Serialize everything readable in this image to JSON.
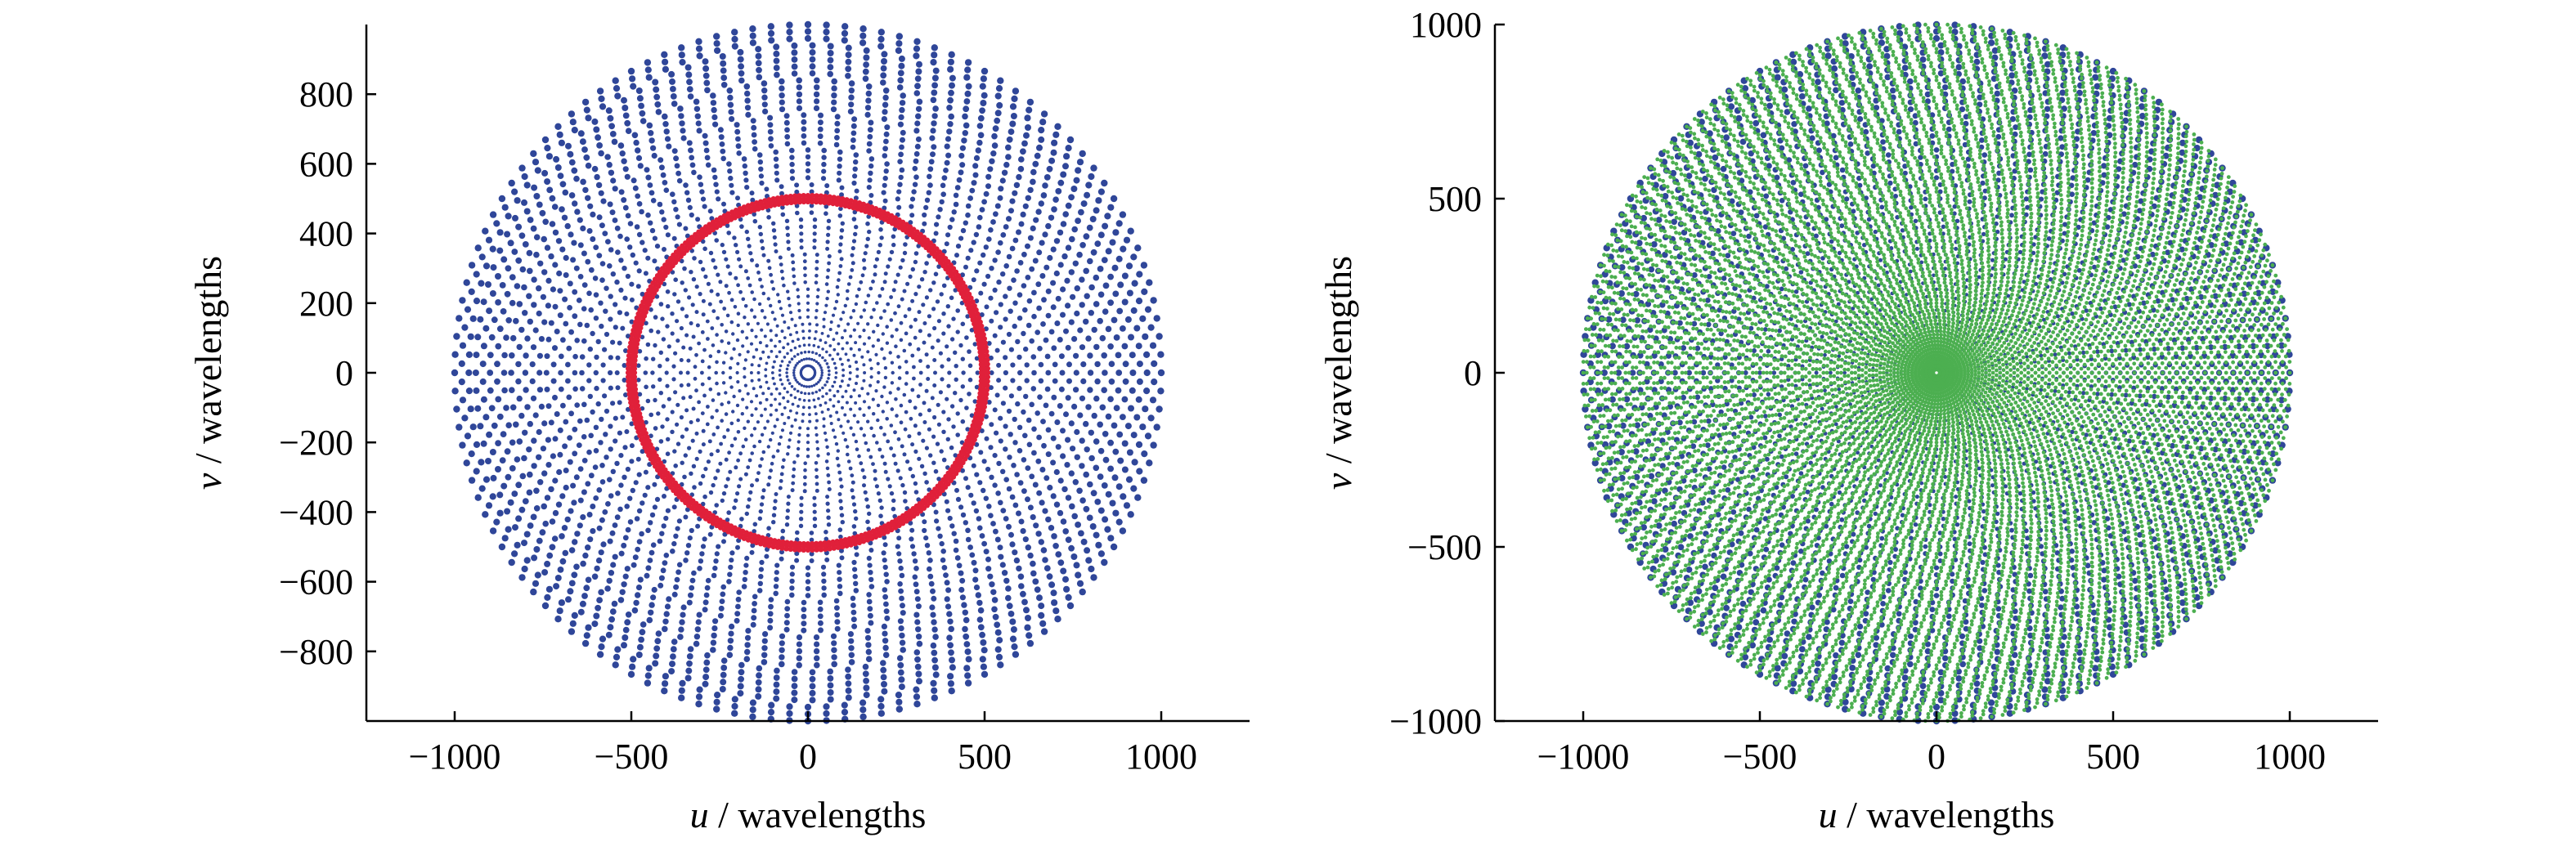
{
  "chart_data": [
    {
      "type": "scatter",
      "description_series": [
        "uv samples",
        "ring"
      ],
      "xlabel": {
        "var": "u",
        "unit": " / wavelengths"
      },
      "ylabel": {
        "var": "v",
        "unit": " / wavelengths"
      },
      "xlim": [
        -1250,
        1250
      ],
      "ylim": [
        -1000,
        1000
      ],
      "xticks": [
        -1000,
        -500,
        0,
        500,
        1000
      ],
      "xtick_labels": [
        "−1000",
        "−500",
        "0",
        "500",
        "1000"
      ],
      "yticks": [
        -800,
        -600,
        -400,
        -200,
        0,
        200,
        400,
        600,
        800
      ],
      "ytick_labels": [
        "−800",
        "−600",
        "−400",
        "−200",
        "0",
        "200",
        "400",
        "600",
        "800"
      ],
      "grid": false,
      "series": [
        {
          "color": "#2f4699",
          "pattern": "polar-grid",
          "r_max": 1000,
          "rings": 50,
          "spokes": 120
        },
        {
          "color": "#e0203a",
          "pattern": "ring",
          "radius": 500
        }
      ]
    },
    {
      "type": "scatter",
      "xlabel": {
        "var": "u",
        "unit": " / wavelengths"
      },
      "ylabel": {
        "var": "v",
        "unit": " / wavelengths"
      },
      "xlim": [
        -1250,
        1250
      ],
      "ylim": [
        -1000,
        1000
      ],
      "xticks": [
        -1000,
        -500,
        0,
        500,
        1000
      ],
      "xtick_labels": [
        "−1000",
        "−500",
        "0",
        "500",
        "1000"
      ],
      "yticks": [
        -1000,
        -500,
        0,
        500,
        1000
      ],
      "ytick_labels": [
        "−1000",
        "−500",
        "0",
        "500",
        "1000"
      ],
      "grid": false,
      "series": [
        {
          "color": "#2f4699",
          "pattern": "polar-grid",
          "r_max": 1000,
          "rings": 50,
          "spokes": 120
        },
        {
          "color": "#4caf50",
          "pattern": "polar-grid-dense",
          "r_max": 1000,
          "rings": 100,
          "spokes": 200
        }
      ]
    }
  ]
}
